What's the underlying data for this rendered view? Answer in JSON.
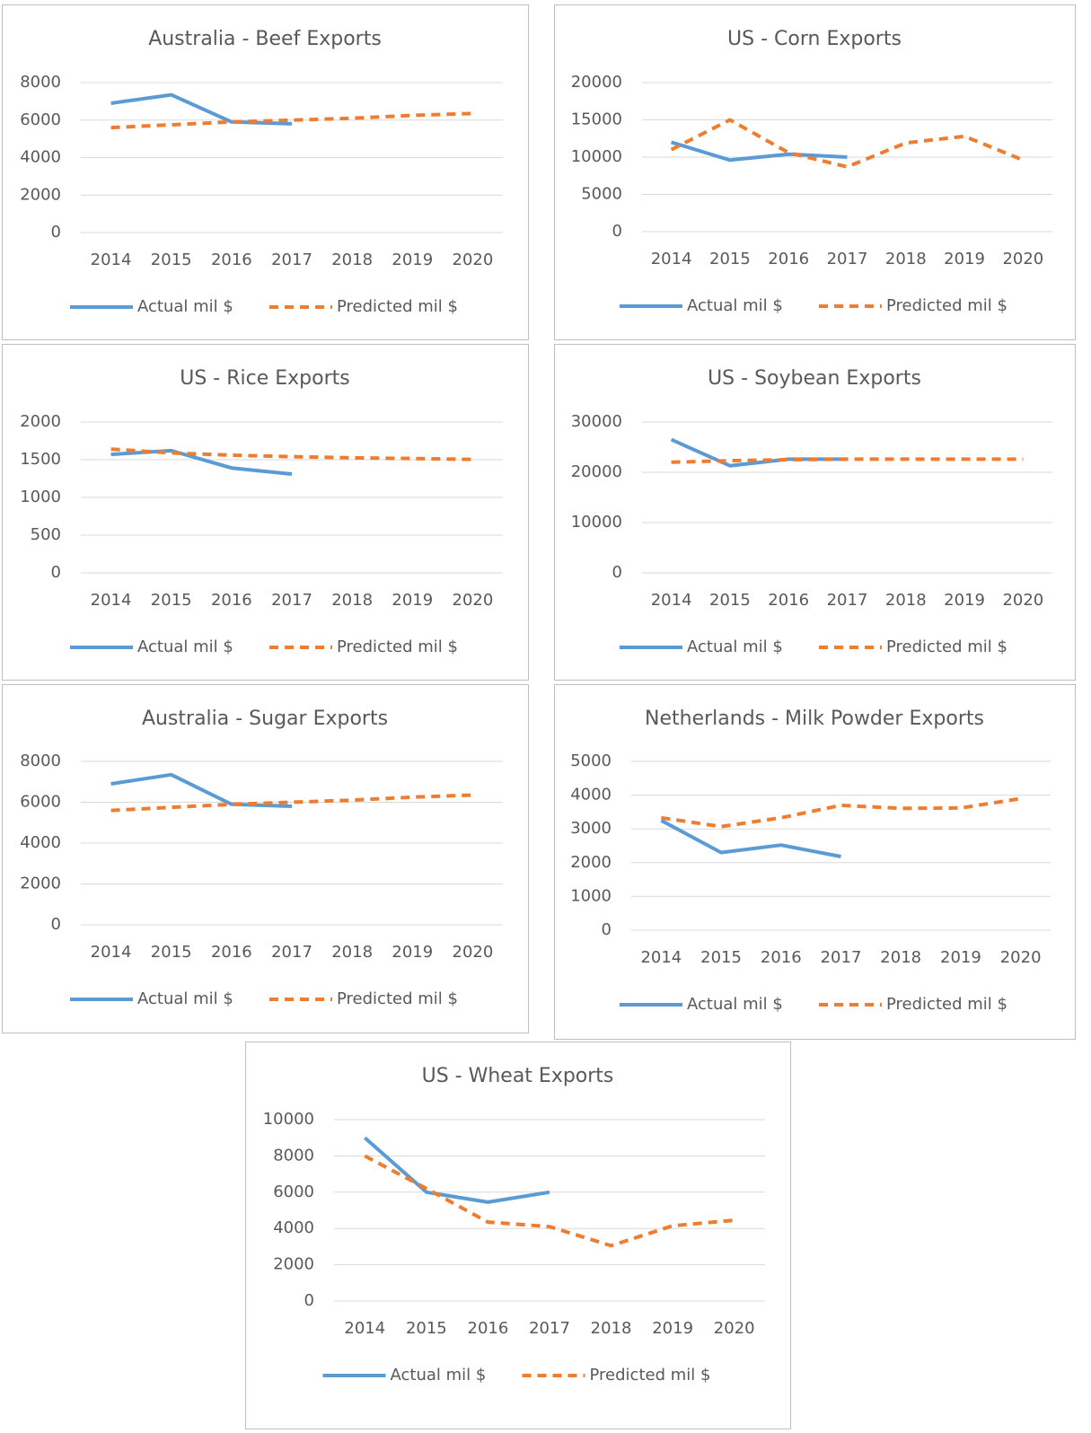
{
  "chart_data": [
    {
      "type": "line",
      "title": "Australia - Beef Exports",
      "categories": [
        "2014",
        "2015",
        "2016",
        "2017",
        "2018",
        "2019",
        "2020"
      ],
      "series": [
        {
          "name": "Actual mil $",
          "color": "#5b9bd5",
          "line_style": "solid",
          "values": [
            6900,
            7350,
            5900,
            5800,
            null,
            null,
            null
          ]
        },
        {
          "name": "Predicted mil $",
          "color": "#ed7d31",
          "line_style": "dashed",
          "values": [
            5600,
            5750,
            5900,
            6000,
            6100,
            6250,
            6350
          ]
        }
      ],
      "ylim": [
        0,
        8000
      ],
      "yticks": [
        0,
        2000,
        4000,
        6000,
        8000
      ],
      "grid": true,
      "legend": "bottom"
    },
    {
      "type": "line",
      "title": "US - Corn Exports",
      "categories": [
        "2014",
        "2015",
        "2016",
        "2017",
        "2018",
        "2019",
        "2020"
      ],
      "series": [
        {
          "name": "Actual mil $",
          "color": "#5b9bd5",
          "line_style": "solid",
          "values": [
            12000,
            9600,
            10400,
            10000,
            null,
            null,
            null
          ]
        },
        {
          "name": "Predicted mil $",
          "color": "#ed7d31",
          "line_style": "dashed",
          "values": [
            11000,
            15000,
            10600,
            8700,
            11900,
            12800,
            9600
          ]
        }
      ],
      "ylim": [
        0,
        20000
      ],
      "yticks": [
        0,
        5000,
        10000,
        15000,
        20000
      ],
      "grid": true,
      "legend": "bottom"
    },
    {
      "type": "line",
      "title": "US - Rice Exports",
      "categories": [
        "2014",
        "2015",
        "2016",
        "2017",
        "2018",
        "2019",
        "2020"
      ],
      "series": [
        {
          "name": "Actual mil $",
          "color": "#5b9bd5",
          "line_style": "solid",
          "values": [
            1570,
            1620,
            1390,
            1310,
            null,
            null,
            null
          ]
        },
        {
          "name": "Predicted mil $",
          "color": "#ed7d31",
          "line_style": "dashed",
          "values": [
            1640,
            1590,
            1560,
            1540,
            1525,
            1515,
            1505
          ]
        }
      ],
      "ylim": [
        0,
        2000
      ],
      "yticks": [
        0,
        500,
        1000,
        1500,
        2000
      ],
      "grid": true,
      "legend": "bottom"
    },
    {
      "type": "line",
      "title": "US - Soybean Exports",
      "categories": [
        "2014",
        "2015",
        "2016",
        "2017",
        "2018",
        "2019",
        "2020"
      ],
      "series": [
        {
          "name": "Actual mil $",
          "color": "#5b9bd5",
          "line_style": "solid",
          "values": [
            26500,
            21300,
            22600,
            22600,
            null,
            null,
            null
          ]
        },
        {
          "name": "Predicted mil $",
          "color": "#ed7d31",
          "line_style": "dashed",
          "values": [
            22000,
            22300,
            22500,
            22600,
            22600,
            22600,
            22600
          ]
        }
      ],
      "ylim": [
        0,
        30000
      ],
      "yticks": [
        0,
        10000,
        20000,
        30000
      ],
      "grid": true,
      "legend": "bottom"
    },
    {
      "type": "line",
      "title": "Australia - Sugar Exports",
      "categories": [
        "2014",
        "2015",
        "2016",
        "2017",
        "2018",
        "2019",
        "2020"
      ],
      "series": [
        {
          "name": "Actual mil $",
          "color": "#5b9bd5",
          "line_style": "solid",
          "values": [
            6900,
            7350,
            5900,
            5800,
            null,
            null,
            null
          ]
        },
        {
          "name": "Predicted mil $",
          "color": "#ed7d31",
          "line_style": "dashed",
          "values": [
            5600,
            5750,
            5900,
            6000,
            6100,
            6250,
            6350
          ]
        }
      ],
      "ylim": [
        0,
        8000
      ],
      "yticks": [
        0,
        2000,
        4000,
        6000,
        8000
      ],
      "grid": true,
      "legend": "bottom"
    },
    {
      "type": "line",
      "title": "Netherlands - Milk Powder Exports",
      "categories": [
        "2014",
        "2015",
        "2016",
        "2017",
        "2018",
        "2019",
        "2020"
      ],
      "series": [
        {
          "name": "Actual mil $",
          "color": "#5b9bd5",
          "line_style": "solid",
          "values": [
            3250,
            2300,
            2520,
            2180,
            null,
            null,
            null
          ]
        },
        {
          "name": "Predicted mil $",
          "color": "#ed7d31",
          "line_style": "dashed",
          "values": [
            3330,
            3070,
            3330,
            3700,
            3610,
            3620,
            3900
          ]
        }
      ],
      "ylim": [
        0,
        5000
      ],
      "yticks": [
        0,
        1000,
        2000,
        3000,
        4000,
        5000
      ],
      "grid": true,
      "legend": "bottom"
    },
    {
      "type": "line",
      "title": "US - Wheat Exports",
      "categories": [
        "2014",
        "2015",
        "2016",
        "2017",
        "2018",
        "2019",
        "2020"
      ],
      "series": [
        {
          "name": "Actual mil $",
          "color": "#5b9bd5",
          "line_style": "solid",
          "values": [
            9000,
            6000,
            5450,
            6000,
            null,
            null,
            null
          ]
        },
        {
          "name": "Predicted mil $",
          "color": "#ed7d31",
          "line_style": "dashed",
          "values": [
            8000,
            6200,
            4350,
            4100,
            3050,
            4150,
            4450
          ]
        }
      ],
      "ylim": [
        0,
        10000
      ],
      "yticks": [
        0,
        2000,
        4000,
        6000,
        8000,
        10000
      ],
      "grid": true,
      "legend": "bottom"
    }
  ]
}
